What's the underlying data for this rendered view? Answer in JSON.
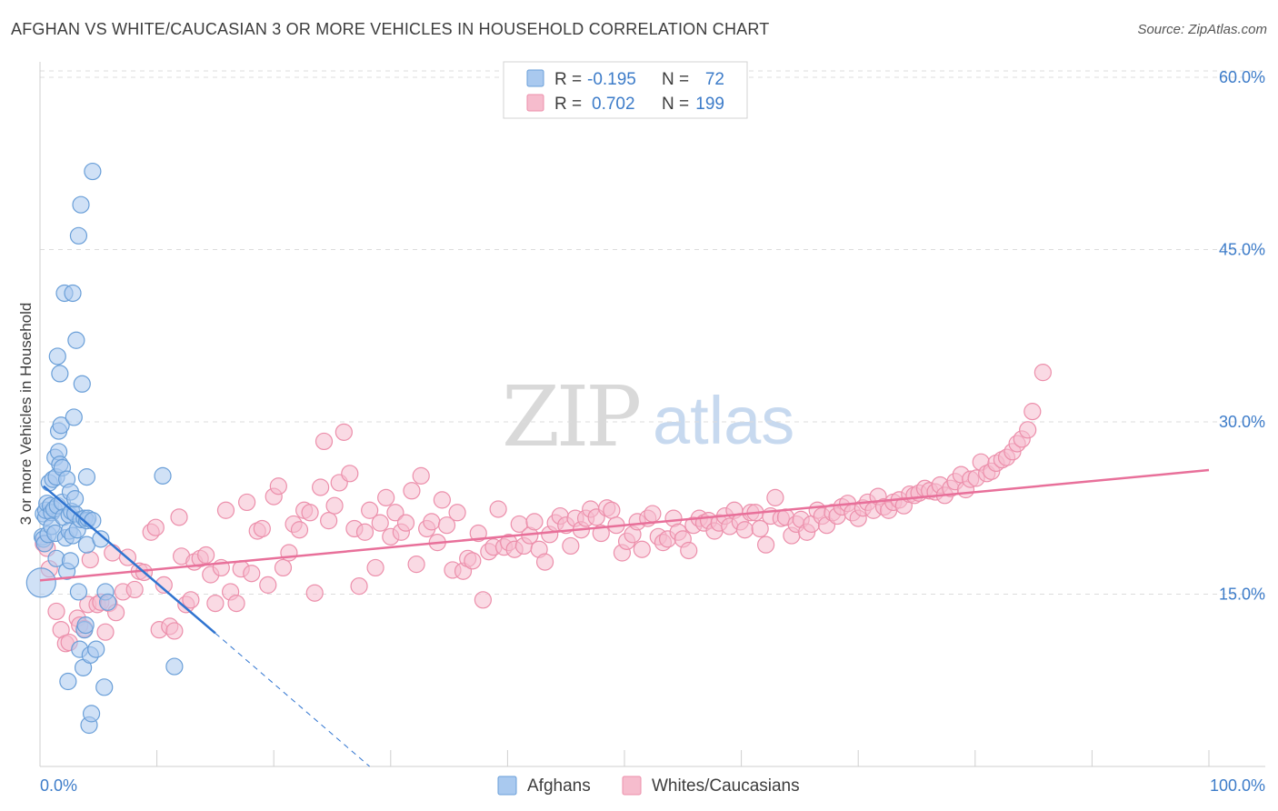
{
  "title": "AFGHAN VS WHITE/CAUCASIAN 3 OR MORE VEHICLES IN HOUSEHOLD CORRELATION CHART",
  "source": "Source: ZipAtlas.com",
  "watermark": {
    "zip": "ZIP",
    "atlas": "atlas"
  },
  "colors": {
    "afghan_fill": "#a9c9ef",
    "afghan_stroke": "#6a9fd8",
    "afghan_line": "#2f74d0",
    "white_fill": "#f6bccd",
    "white_stroke": "#ec8fab",
    "white_line": "#e8709a",
    "tick_text": "#3d7cc9",
    "grid": "#dcdcdc"
  },
  "legend": {
    "rows": [
      {
        "r_label": "R =",
        "r_value": "-0.195",
        "n_label": "N =",
        "n_value": "72"
      },
      {
        "r_label": "R =",
        "r_value": "0.702",
        "n_label": "N =",
        "n_value": "199"
      }
    ]
  },
  "bottom_legend": {
    "afghan": "Afghans",
    "white": "Whites/Caucasians"
  },
  "chart_data": {
    "type": "scatter",
    "title": "AFGHAN VS WHITE/CAUCASIAN 3 OR MORE VEHICLES IN HOUSEHOLD CORRELATION CHART",
    "xlabel": "",
    "ylabel": "3 or more Vehicles in Household",
    "xlim": [
      0,
      100
    ],
    "ylim": [
      0,
      61.5
    ],
    "x_tick_labels": {
      "left": "0.0%",
      "right": "100.0%"
    },
    "y_ticks": [
      {
        "value": 15,
        "label": "15.0%"
      },
      {
        "value": 30,
        "label": "30.0%"
      },
      {
        "value": 45,
        "label": "45.0%"
      },
      {
        "value": 60,
        "label": "60.0%"
      }
    ],
    "series": [
      {
        "name": "Afghans",
        "trend": {
          "x0": 0.3,
          "y0": 24.4,
          "x1": 15,
          "y1": 11.6,
          "dash_to_x": 28.2,
          "dash_to_y": 0
        },
        "points": [
          [
            0.1,
            16.0
          ],
          [
            0.2,
            20.0
          ],
          [
            0.3,
            19.8
          ],
          [
            0.3,
            22.0
          ],
          [
            0.4,
            19.4
          ],
          [
            0.5,
            21.7
          ],
          [
            0.5,
            22.3
          ],
          [
            0.6,
            22.9
          ],
          [
            0.7,
            20.2
          ],
          [
            0.8,
            24.7
          ],
          [
            0.9,
            22.7
          ],
          [
            1.0,
            22.1
          ],
          [
            1.0,
            20.9
          ],
          [
            1.1,
            25.0
          ],
          [
            1.2,
            22.4
          ],
          [
            1.3,
            20.3
          ],
          [
            1.3,
            26.9
          ],
          [
            1.4,
            18.1
          ],
          [
            1.4,
            25.2
          ],
          [
            1.5,
            22.7
          ],
          [
            1.5,
            35.7
          ],
          [
            1.6,
            27.4
          ],
          [
            1.6,
            29.2
          ],
          [
            1.7,
            26.3
          ],
          [
            1.7,
            34.2
          ],
          [
            1.8,
            29.7
          ],
          [
            1.9,
            23.0
          ],
          [
            1.9,
            26.0
          ],
          [
            2.0,
            21.7
          ],
          [
            2.1,
            41.2
          ],
          [
            2.2,
            19.9
          ],
          [
            2.3,
            17.0
          ],
          [
            2.3,
            25.0
          ],
          [
            2.4,
            7.4
          ],
          [
            2.5,
            21.9
          ],
          [
            2.5,
            20.5
          ],
          [
            2.6,
            23.9
          ],
          [
            2.6,
            17.9
          ],
          [
            2.7,
            22.2
          ],
          [
            2.8,
            41.2
          ],
          [
            2.8,
            20.1
          ],
          [
            2.9,
            30.4
          ],
          [
            3.0,
            22.0
          ],
          [
            3.0,
            23.3
          ],
          [
            3.1,
            37.1
          ],
          [
            3.2,
            20.6
          ],
          [
            3.3,
            46.2
          ],
          [
            3.3,
            15.2
          ],
          [
            3.4,
            10.2
          ],
          [
            3.5,
            48.9
          ],
          [
            3.5,
            21.5
          ],
          [
            3.6,
            33.3
          ],
          [
            3.7,
            8.6
          ],
          [
            3.8,
            11.9
          ],
          [
            3.8,
            21.6
          ],
          [
            3.9,
            12.3
          ],
          [
            4.0,
            21.4
          ],
          [
            4.0,
            25.2
          ],
          [
            4.0,
            19.3
          ],
          [
            4.1,
            21.6
          ],
          [
            4.2,
            3.6
          ],
          [
            4.3,
            9.7
          ],
          [
            4.4,
            4.6
          ],
          [
            4.5,
            21.4
          ],
          [
            4.5,
            51.8
          ],
          [
            4.8,
            10.2
          ],
          [
            5.2,
            19.8
          ],
          [
            5.5,
            6.9
          ],
          [
            5.6,
            15.2
          ],
          [
            5.8,
            14.3
          ],
          [
            10.5,
            25.3
          ],
          [
            11.5,
            8.7
          ]
        ]
      },
      {
        "name": "Whites/Caucasians",
        "trend": {
          "x0": 0,
          "y0": 16.2,
          "x1": 100,
          "y1": 25.8
        },
        "points": [
          [
            0.3,
            19.4
          ],
          [
            0.6,
            19.0
          ],
          [
            0.8,
            17.2
          ],
          [
            1.4,
            13.5
          ],
          [
            1.8,
            11.9
          ],
          [
            2.2,
            10.7
          ],
          [
            2.5,
            10.8
          ],
          [
            3.2,
            12.9
          ],
          [
            3.4,
            12.3
          ],
          [
            3.8,
            12.0
          ],
          [
            4.1,
            14.1
          ],
          [
            4.3,
            18.0
          ],
          [
            4.9,
            14.1
          ],
          [
            5.2,
            14.3
          ],
          [
            5.6,
            11.7
          ],
          [
            5.9,
            14.2
          ],
          [
            6.2,
            18.6
          ],
          [
            6.5,
            13.4
          ],
          [
            7.1,
            15.2
          ],
          [
            7.5,
            18.2
          ],
          [
            8.1,
            15.4
          ],
          [
            8.5,
            17.0
          ],
          [
            8.9,
            16.9
          ],
          [
            9.5,
            20.4
          ],
          [
            9.9,
            20.8
          ],
          [
            10.2,
            11.9
          ],
          [
            10.6,
            15.8
          ],
          [
            11.1,
            12.2
          ],
          [
            11.5,
            11.8
          ],
          [
            11.9,
            21.7
          ],
          [
            12.1,
            18.3
          ],
          [
            12.5,
            14.1
          ],
          [
            12.9,
            14.5
          ],
          [
            13.2,
            17.8
          ],
          [
            13.7,
            18.1
          ],
          [
            14.2,
            18.4
          ],
          [
            14.6,
            16.7
          ],
          [
            15.0,
            14.2
          ],
          [
            15.5,
            17.3
          ],
          [
            15.9,
            22.3
          ],
          [
            16.3,
            15.2
          ],
          [
            16.8,
            14.2
          ],
          [
            17.2,
            17.2
          ],
          [
            17.7,
            23.0
          ],
          [
            18.1,
            16.8
          ],
          [
            18.6,
            20.5
          ],
          [
            19.0,
            20.7
          ],
          [
            19.5,
            15.8
          ],
          [
            20.0,
            23.5
          ],
          [
            20.4,
            24.4
          ],
          [
            20.8,
            17.3
          ],
          [
            21.3,
            18.6
          ],
          [
            21.7,
            21.1
          ],
          [
            22.2,
            20.6
          ],
          [
            22.6,
            22.3
          ],
          [
            23.1,
            22.1
          ],
          [
            23.5,
            15.1
          ],
          [
            24.0,
            24.3
          ],
          [
            24.3,
            28.3
          ],
          [
            24.7,
            21.4
          ],
          [
            25.2,
            22.7
          ],
          [
            25.6,
            24.7
          ],
          [
            26.0,
            29.1
          ],
          [
            26.5,
            25.5
          ],
          [
            26.9,
            20.7
          ],
          [
            27.3,
            15.7
          ],
          [
            27.8,
            20.4
          ],
          [
            28.2,
            22.3
          ],
          [
            28.7,
            17.3
          ],
          [
            29.1,
            21.2
          ],
          [
            29.6,
            23.4
          ],
          [
            30.0,
            20.0
          ],
          [
            30.4,
            22.1
          ],
          [
            30.9,
            20.4
          ],
          [
            31.3,
            21.2
          ],
          [
            31.8,
            24.0
          ],
          [
            32.2,
            17.6
          ],
          [
            32.6,
            25.3
          ],
          [
            33.1,
            20.7
          ],
          [
            33.5,
            21.3
          ],
          [
            34.0,
            19.5
          ],
          [
            34.4,
            23.2
          ],
          [
            34.8,
            21.0
          ],
          [
            35.3,
            17.1
          ],
          [
            35.7,
            22.1
          ],
          [
            36.2,
            17.0
          ],
          [
            36.6,
            18.1
          ],
          [
            37.0,
            17.9
          ],
          [
            37.5,
            20.3
          ],
          [
            37.9,
            14.5
          ],
          [
            38.4,
            18.7
          ],
          [
            38.8,
            19.1
          ],
          [
            39.2,
            22.4
          ],
          [
            39.7,
            19.1
          ],
          [
            40.1,
            19.5
          ],
          [
            40.6,
            18.9
          ],
          [
            41.0,
            21.1
          ],
          [
            41.4,
            19.2
          ],
          [
            41.9,
            20.1
          ],
          [
            42.3,
            21.3
          ],
          [
            42.7,
            18.9
          ],
          [
            43.2,
            17.8
          ],
          [
            43.6,
            20.2
          ],
          [
            44.1,
            21.2
          ],
          [
            44.5,
            21.8
          ],
          [
            45.0,
            21.0
          ],
          [
            45.4,
            19.2
          ],
          [
            45.8,
            21.6
          ],
          [
            46.3,
            20.6
          ],
          [
            46.7,
            21.6
          ],
          [
            47.1,
            22.4
          ],
          [
            47.6,
            21.7
          ],
          [
            48.0,
            20.3
          ],
          [
            48.5,
            22.5
          ],
          [
            48.9,
            22.3
          ],
          [
            49.3,
            21.0
          ],
          [
            49.8,
            18.6
          ],
          [
            50.2,
            19.6
          ],
          [
            50.7,
            20.2
          ],
          [
            51.1,
            21.3
          ],
          [
            51.5,
            18.9
          ],
          [
            52.0,
            21.6
          ],
          [
            52.4,
            22.0
          ],
          [
            52.9,
            20.0
          ],
          [
            53.3,
            19.5
          ],
          [
            53.7,
            19.8
          ],
          [
            54.2,
            21.6
          ],
          [
            54.6,
            20.4
          ],
          [
            55.0,
            19.8
          ],
          [
            55.5,
            18.8
          ],
          [
            55.9,
            21.0
          ],
          [
            56.4,
            21.6
          ],
          [
            56.8,
            21.2
          ],
          [
            57.2,
            21.4
          ],
          [
            57.7,
            20.5
          ],
          [
            58.1,
            21.2
          ],
          [
            58.6,
            21.8
          ],
          [
            59.0,
            20.9
          ],
          [
            59.4,
            22.3
          ],
          [
            59.9,
            21.3
          ],
          [
            60.3,
            20.6
          ],
          [
            60.8,
            22.1
          ],
          [
            61.2,
            22.1
          ],
          [
            61.6,
            20.7
          ],
          [
            62.1,
            19.3
          ],
          [
            62.5,
            21.8
          ],
          [
            62.9,
            23.4
          ],
          [
            63.4,
            21.6
          ],
          [
            63.8,
            21.7
          ],
          [
            64.3,
            20.1
          ],
          [
            64.7,
            21.1
          ],
          [
            65.1,
            21.5
          ],
          [
            65.6,
            20.4
          ],
          [
            66.0,
            21.1
          ],
          [
            66.5,
            22.3
          ],
          [
            66.9,
            21.8
          ],
          [
            67.3,
            21.0
          ],
          [
            67.8,
            22.1
          ],
          [
            68.2,
            21.8
          ],
          [
            68.6,
            22.6
          ],
          [
            69.1,
            22.9
          ],
          [
            69.5,
            22.1
          ],
          [
            70.0,
            21.6
          ],
          [
            70.4,
            22.5
          ],
          [
            70.8,
            23.0
          ],
          [
            71.3,
            22.3
          ],
          [
            71.7,
            23.5
          ],
          [
            72.2,
            22.6
          ],
          [
            72.6,
            22.3
          ],
          [
            73.0,
            23.0
          ],
          [
            73.5,
            23.2
          ],
          [
            73.9,
            22.7
          ],
          [
            74.4,
            23.7
          ],
          [
            74.8,
            23.6
          ],
          [
            75.2,
            23.8
          ],
          [
            75.7,
            24.2
          ],
          [
            76.1,
            24.0
          ],
          [
            76.6,
            23.9
          ],
          [
            77.0,
            24.5
          ],
          [
            77.4,
            23.6
          ],
          [
            77.9,
            24.2
          ],
          [
            78.3,
            24.8
          ],
          [
            78.8,
            25.4
          ],
          [
            79.2,
            24.1
          ],
          [
            79.6,
            25.0
          ],
          [
            80.1,
            25.1
          ],
          [
            80.5,
            26.5
          ],
          [
            81.0,
            25.5
          ],
          [
            81.4,
            25.7
          ],
          [
            81.8,
            26.4
          ],
          [
            82.3,
            26.7
          ],
          [
            82.7,
            26.9
          ],
          [
            83.2,
            27.4
          ],
          [
            83.6,
            28.1
          ],
          [
            84.0,
            28.5
          ],
          [
            84.5,
            29.3
          ],
          [
            84.9,
            30.9
          ],
          [
            85.8,
            34.3
          ]
        ]
      }
    ]
  }
}
